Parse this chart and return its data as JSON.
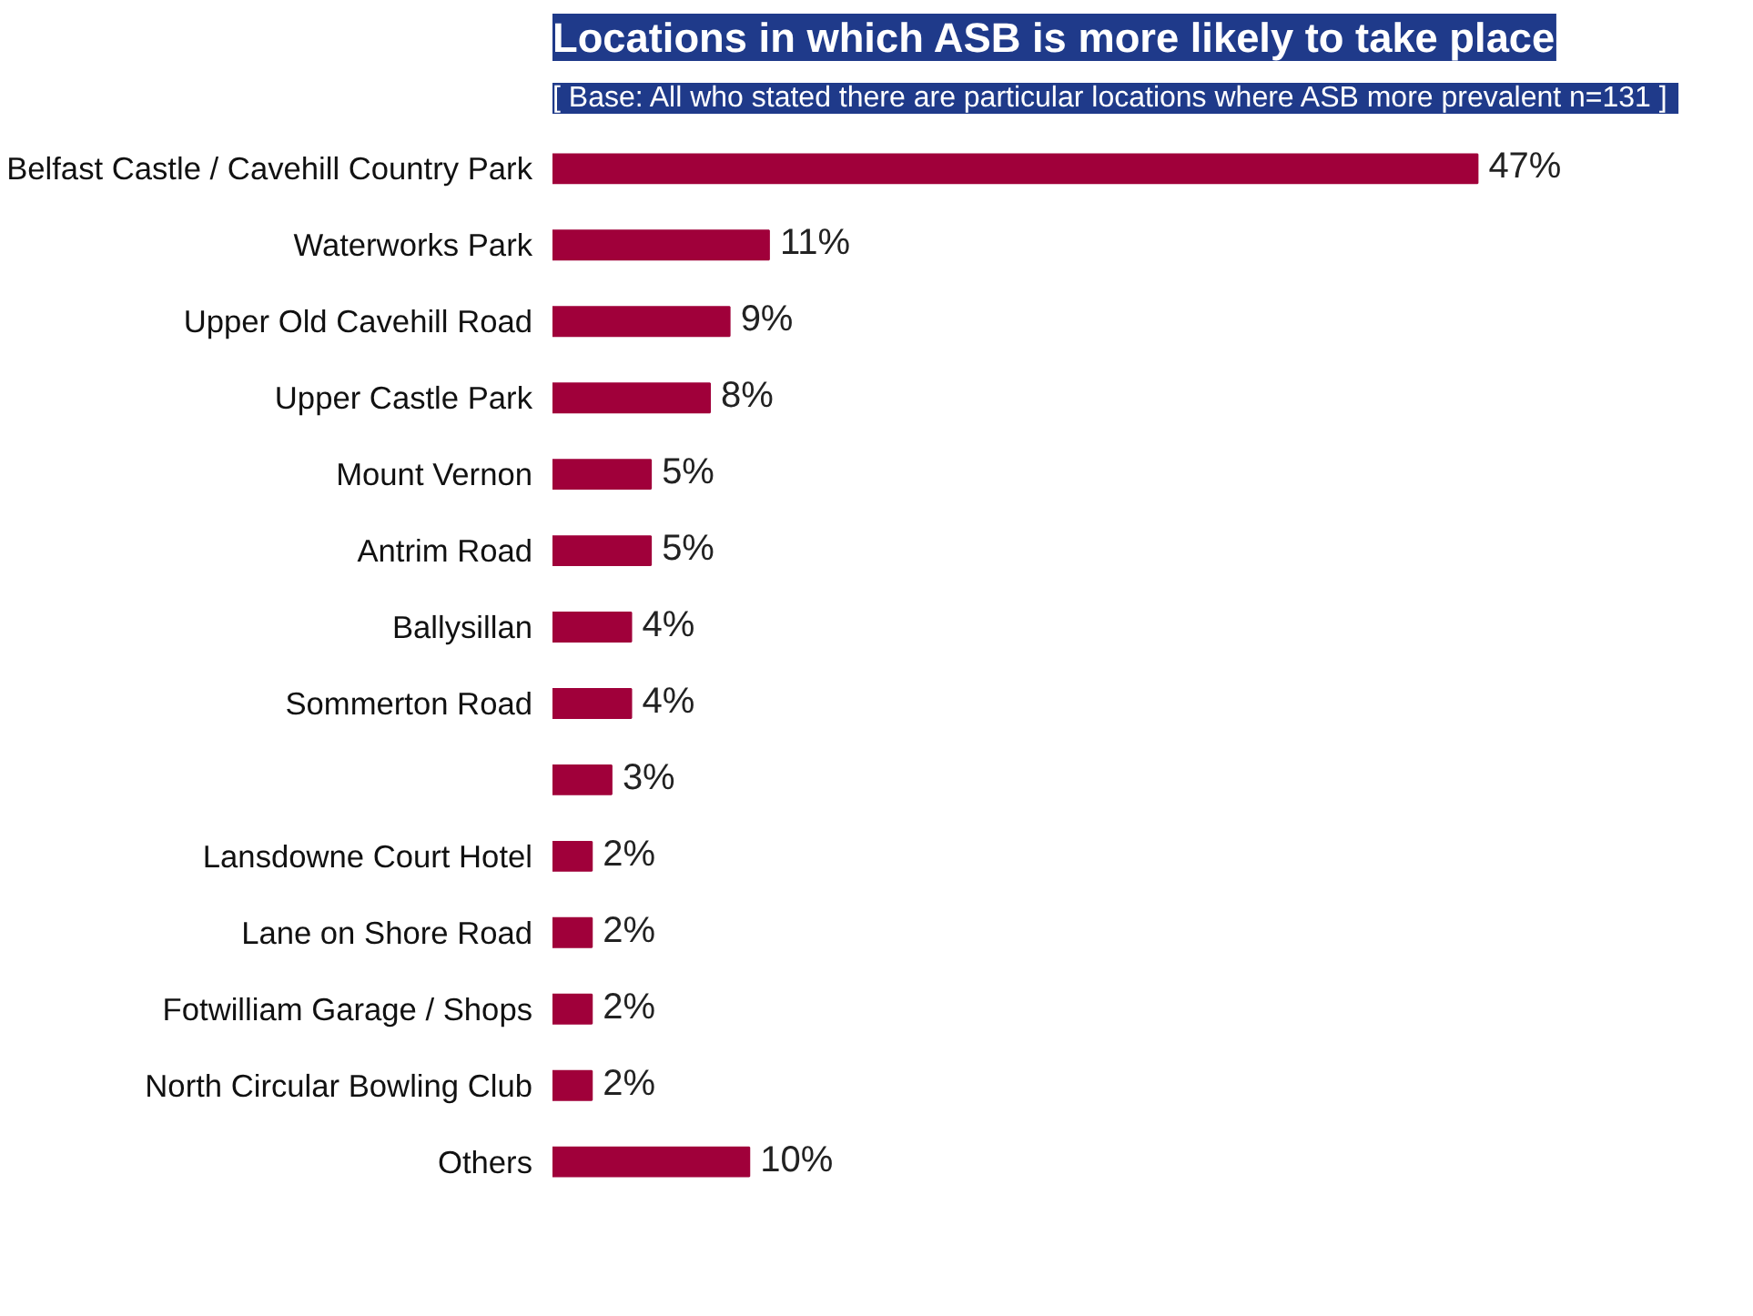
{
  "chart_data": {
    "type": "bar",
    "orientation": "horizontal",
    "title": "Locations in which ASB is more likely to take place",
    "subtitle": "[ Base:  All who stated there are particular locations where ASB more prevalent n=131 ]",
    "categories": [
      "Belfast Castle / Cavehill Country Park",
      "Waterworks Park",
      "Upper Old Cavehill Road",
      "Upper Castle Park",
      "Mount Vernon",
      "Antrim Road",
      "Ballysillan",
      "Sommerton Road",
      null,
      "Lansdowne Court Hotel",
      "Lane on Shore Road",
      "Fotwilliam Garage / Shops",
      "North Circular Bowling Club",
      "Others"
    ],
    "values": [
      47,
      11,
      9,
      8,
      5,
      5,
      4,
      4,
      3,
      2,
      2,
      2,
      2,
      10
    ],
    "color": "#a0003a",
    "data_labels": true,
    "value_labels": [
      "47%",
      "11%",
      "9%",
      "8%",
      "5%",
      "5%",
      "4%",
      "4%",
      "3%",
      "2%",
      "2%",
      "2%",
      "2%",
      "10%"
    ]
  }
}
